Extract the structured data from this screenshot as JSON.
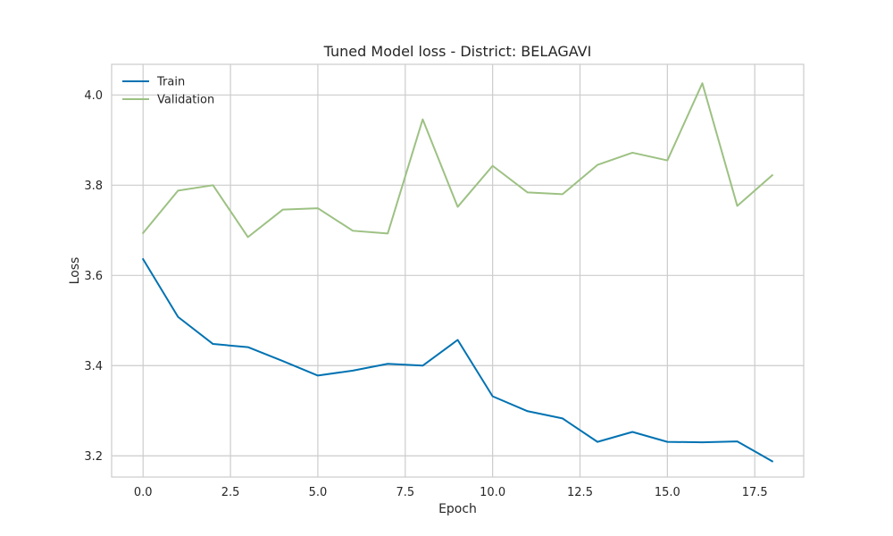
{
  "chart_data": {
    "type": "line",
    "title": "Tuned Model loss - District: BELAGAVI",
    "xlabel": "Epoch",
    "ylabel": "Loss",
    "x": [
      0,
      1,
      2,
      3,
      4,
      5,
      6,
      7,
      8,
      9,
      10,
      11,
      12,
      13,
      14,
      15,
      16,
      17,
      18
    ],
    "xlim": [
      -0.9,
      18.9
    ],
    "ylim": [
      3.153,
      4.068
    ],
    "xticks": [
      0,
      2.5,
      5,
      7.5,
      10,
      12.5,
      15,
      17.5
    ],
    "xtick_labels": [
      "0.0",
      "2.5",
      "5.0",
      "7.5",
      "10.0",
      "12.5",
      "15.0",
      "17.5"
    ],
    "yticks": [
      3.2,
      3.4,
      3.6,
      3.8,
      4.0
    ],
    "ytick_labels": [
      "3.2",
      "3.4",
      "3.6",
      "3.8",
      "4.0"
    ],
    "grid": true,
    "legend_position": "top-left",
    "series": [
      {
        "name": "Train",
        "color": "#0072B2",
        "values": [
          3.636,
          3.508,
          3.448,
          3.441,
          3.41,
          3.378,
          3.389,
          3.404,
          3.4,
          3.457,
          3.332,
          3.299,
          3.283,
          3.231,
          3.253,
          3.231,
          3.23,
          3.232,
          3.188
        ]
      },
      {
        "name": "Validation",
        "color": "#9DC183",
        "values": [
          3.694,
          3.788,
          3.8,
          3.685,
          3.746,
          3.749,
          3.699,
          3.693,
          3.946,
          3.752,
          3.843,
          3.784,
          3.78,
          3.845,
          3.872,
          3.855,
          4.026,
          3.754,
          3.822
        ]
      }
    ]
  }
}
